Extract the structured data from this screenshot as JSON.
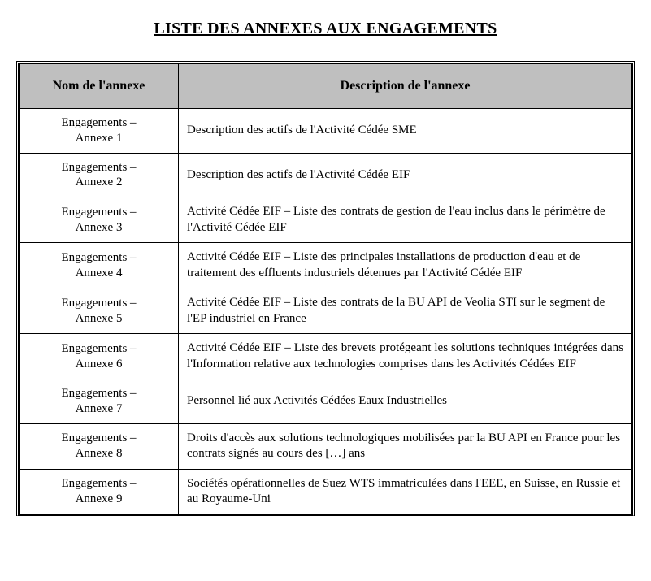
{
  "title": "LISTE DES ANNEXES AUX ENGAGEMENTS",
  "table": {
    "columns": [
      "Nom de l'annexe",
      "Description de l'annexe"
    ],
    "header_bg": "#bfbfbf",
    "header_fontsize": 16,
    "cell_fontsize": 15,
    "border_color": "#000000",
    "background_color": "#ffffff",
    "col_widths_pct": [
      26,
      74
    ],
    "rows": [
      {
        "name_l1": "Engagements –",
        "name_l2": "Annexe 1",
        "desc": "Description des actifs de l'Activité Cédée SME",
        "justify": false
      },
      {
        "name_l1": "Engagements –",
        "name_l2": "Annexe 2",
        "desc": "Description des actifs de l'Activité Cédée EIF",
        "justify": false
      },
      {
        "name_l1": "Engagements –",
        "name_l2": "Annexe 3",
        "desc": "Activité Cédée EIF – Liste des contrats de gestion de l'eau inclus dans le périmètre de l'Activité Cédée EIF",
        "justify": false
      },
      {
        "name_l1": "Engagements –",
        "name_l2": "Annexe 4",
        "desc": "Activité Cédée EIF – Liste des principales installations de production d'eau et de traitement des effluents industriels détenues par l'Activité Cédée EIF",
        "justify": false
      },
      {
        "name_l1": "Engagements –",
        "name_l2": "Annexe 5",
        "desc": "Activité Cédée EIF – Liste des contrats de la BU API de Veolia STI sur le segment de l'EP industriel en France",
        "justify": false
      },
      {
        "name_l1": "Engagements –",
        "name_l2": "Annexe 6",
        "desc": "Activité Cédée EIF – Liste des brevets protégeant les solutions techniques intégrées dans l'Information relative aux technologies comprises dans les Activités Cédées EIF",
        "justify": true
      },
      {
        "name_l1": "Engagements –",
        "name_l2": "Annexe 7",
        "desc": "Personnel lié aux Activités Cédées Eaux Industrielles",
        "justify": false
      },
      {
        "name_l1": "Engagements –",
        "name_l2": "Annexe 8",
        "desc": "Droits d'accès aux solutions technologiques mobilisées par la BU API en France pour les contrats signés au cours des […] ans",
        "justify": false
      },
      {
        "name_l1": "Engagements –",
        "name_l2": "Annexe 9",
        "desc": "Sociétés opérationnelles de Suez WTS immatriculées dans l'EEE, en Suisse, en Russie et au Royaume-Uni",
        "justify": false
      }
    ]
  }
}
